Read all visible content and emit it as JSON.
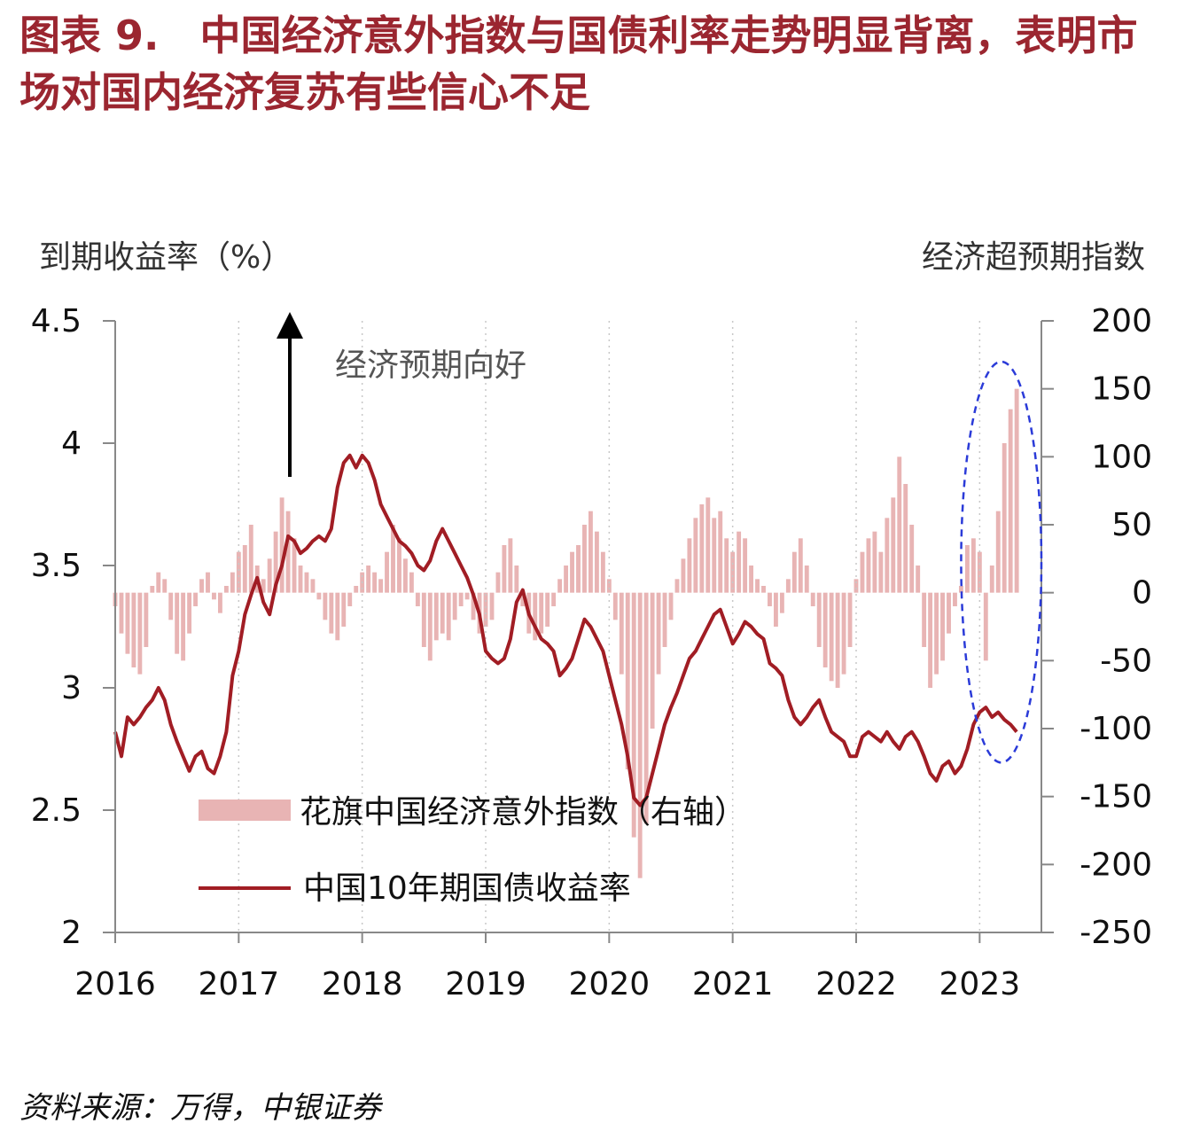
{
  "title": "图表 9.　中国经济意外指数与国债利率走势明显背离，表明市场对国内经济复苏有些信心不足",
  "source": "资料来源：万得，中银证券",
  "chart_data": {
    "type": "bar+line",
    "left_axis": {
      "title": "到期收益率（%）",
      "range": [
        2,
        4.5
      ],
      "ticks": [
        "2",
        "2.5",
        "3",
        "3.5",
        "4",
        "4.5"
      ]
    },
    "right_axis": {
      "title": "经济超预期指数",
      "range": [
        -250,
        200
      ],
      "ticks": [
        "-250",
        "-200",
        "-150",
        "-100",
        "-50",
        "0",
        "50",
        "100",
        "150",
        "200"
      ]
    },
    "x_axis": {
      "range": [
        2016,
        2023.5
      ],
      "ticks": [
        "2016",
        "2017",
        "2018",
        "2019",
        "2020",
        "2021",
        "2022",
        "2023"
      ]
    },
    "annotation": "经济预期向好",
    "series": [
      {
        "name": "花旗中国经济意外指数（右轴）",
        "type": "bar",
        "axis": "right",
        "color": "#e8b4b4",
        "points": [
          [
            2016.0,
            -10
          ],
          [
            2016.05,
            -30
          ],
          [
            2016.1,
            -45
          ],
          [
            2016.15,
            -55
          ],
          [
            2016.2,
            -60
          ],
          [
            2016.25,
            -40
          ],
          [
            2016.3,
            5
          ],
          [
            2016.35,
            15
          ],
          [
            2016.4,
            10
          ],
          [
            2016.45,
            -20
          ],
          [
            2016.5,
            -45
          ],
          [
            2016.55,
            -50
          ],
          [
            2016.6,
            -30
          ],
          [
            2016.65,
            -10
          ],
          [
            2016.7,
            10
          ],
          [
            2016.75,
            15
          ],
          [
            2016.8,
            -5
          ],
          [
            2016.85,
            -15
          ],
          [
            2016.9,
            5
          ],
          [
            2016.95,
            15
          ],
          [
            2017.0,
            30
          ],
          [
            2017.05,
            35
          ],
          [
            2017.1,
            50
          ],
          [
            2017.15,
            20
          ],
          [
            2017.2,
            10
          ],
          [
            2017.25,
            25
          ],
          [
            2017.3,
            45
          ],
          [
            2017.35,
            70
          ],
          [
            2017.4,
            60
          ],
          [
            2017.45,
            40
          ],
          [
            2017.5,
            20
          ],
          [
            2017.55,
            15
          ],
          [
            2017.6,
            10
          ],
          [
            2017.65,
            -5
          ],
          [
            2017.7,
            -20
          ],
          [
            2017.75,
            -30
          ],
          [
            2017.8,
            -35
          ],
          [
            2017.85,
            -25
          ],
          [
            2017.9,
            -10
          ],
          [
            2017.95,
            5
          ],
          [
            2018.0,
            15
          ],
          [
            2018.05,
            20
          ],
          [
            2018.1,
            15
          ],
          [
            2018.15,
            10
          ],
          [
            2018.2,
            30
          ],
          [
            2018.25,
            50
          ],
          [
            2018.3,
            40
          ],
          [
            2018.35,
            25
          ],
          [
            2018.4,
            15
          ],
          [
            2018.45,
            -10
          ],
          [
            2018.5,
            -40
          ],
          [
            2018.55,
            -50
          ],
          [
            2018.6,
            -35
          ],
          [
            2018.65,
            -30
          ],
          [
            2018.7,
            -35
          ],
          [
            2018.75,
            -20
          ],
          [
            2018.8,
            -10
          ],
          [
            2018.85,
            -5
          ],
          [
            2018.9,
            -20
          ],
          [
            2018.95,
            -30
          ],
          [
            2019.0,
            -25
          ],
          [
            2019.05,
            -20
          ],
          [
            2019.1,
            15
          ],
          [
            2019.15,
            35
          ],
          [
            2019.2,
            40
          ],
          [
            2019.25,
            20
          ],
          [
            2019.3,
            -10
          ],
          [
            2019.35,
            -30
          ],
          [
            2019.4,
            -35
          ],
          [
            2019.45,
            -30
          ],
          [
            2019.5,
            -25
          ],
          [
            2019.55,
            -10
          ],
          [
            2019.6,
            10
          ],
          [
            2019.65,
            20
          ],
          [
            2019.7,
            30
          ],
          [
            2019.75,
            35
          ],
          [
            2019.8,
            50
          ],
          [
            2019.85,
            60
          ],
          [
            2019.9,
            45
          ],
          [
            2019.95,
            30
          ],
          [
            2020.0,
            10
          ],
          [
            2020.05,
            -20
          ],
          [
            2020.1,
            -60
          ],
          [
            2020.15,
            -130
          ],
          [
            2020.2,
            -180
          ],
          [
            2020.25,
            -210
          ],
          [
            2020.3,
            -170
          ],
          [
            2020.35,
            -100
          ],
          [
            2020.4,
            -60
          ],
          [
            2020.45,
            -40
          ],
          [
            2020.5,
            -20
          ],
          [
            2020.55,
            10
          ],
          [
            2020.6,
            25
          ],
          [
            2020.65,
            40
          ],
          [
            2020.7,
            55
          ],
          [
            2020.75,
            65
          ],
          [
            2020.8,
            70
          ],
          [
            2020.85,
            55
          ],
          [
            2020.9,
            60
          ],
          [
            2020.95,
            40
          ],
          [
            2021.0,
            30
          ],
          [
            2021.05,
            45
          ],
          [
            2021.1,
            40
          ],
          [
            2021.15,
            20
          ],
          [
            2021.2,
            10
          ],
          [
            2021.25,
            5
          ],
          [
            2021.3,
            -10
          ],
          [
            2021.35,
            -25
          ],
          [
            2021.4,
            -15
          ],
          [
            2021.45,
            10
          ],
          [
            2021.5,
            30
          ],
          [
            2021.55,
            40
          ],
          [
            2021.6,
            20
          ],
          [
            2021.65,
            -10
          ],
          [
            2021.7,
            -40
          ],
          [
            2021.75,
            -55
          ],
          [
            2021.8,
            -65
          ],
          [
            2021.85,
            -70
          ],
          [
            2021.9,
            -60
          ],
          [
            2021.95,
            -40
          ],
          [
            2022.0,
            10
          ],
          [
            2022.05,
            30
          ],
          [
            2022.1,
            40
          ],
          [
            2022.15,
            45
          ],
          [
            2022.2,
            30
          ],
          [
            2022.25,
            55
          ],
          [
            2022.3,
            70
          ],
          [
            2022.35,
            100
          ],
          [
            2022.4,
            80
          ],
          [
            2022.45,
            50
          ],
          [
            2022.5,
            20
          ],
          [
            2022.55,
            -40
          ],
          [
            2022.6,
            -70
          ],
          [
            2022.65,
            -60
          ],
          [
            2022.7,
            -50
          ],
          [
            2022.75,
            -30
          ],
          [
            2022.8,
            -10
          ],
          [
            2022.85,
            5
          ],
          [
            2022.9,
            35
          ],
          [
            2022.95,
            40
          ],
          [
            2023.0,
            30
          ],
          [
            2023.05,
            -50
          ],
          [
            2023.1,
            20
          ],
          [
            2023.15,
            60
          ],
          [
            2023.2,
            110
          ],
          [
            2023.25,
            135
          ],
          [
            2023.3,
            150
          ]
        ]
      },
      {
        "name": "中国10年期国债收益率",
        "type": "line",
        "axis": "left",
        "color": "#a11d24",
        "points": [
          [
            2016.0,
            2.82
          ],
          [
            2016.05,
            2.72
          ],
          [
            2016.1,
            2.88
          ],
          [
            2016.15,
            2.85
          ],
          [
            2016.2,
            2.88
          ],
          [
            2016.25,
            2.92
          ],
          [
            2016.3,
            2.95
          ],
          [
            2016.35,
            3.0
          ],
          [
            2016.4,
            2.95
          ],
          [
            2016.45,
            2.85
          ],
          [
            2016.5,
            2.78
          ],
          [
            2016.55,
            2.72
          ],
          [
            2016.6,
            2.66
          ],
          [
            2016.65,
            2.72
          ],
          [
            2016.7,
            2.74
          ],
          [
            2016.75,
            2.67
          ],
          [
            2016.8,
            2.65
          ],
          [
            2016.85,
            2.72
          ],
          [
            2016.9,
            2.82
          ],
          [
            2016.95,
            3.05
          ],
          [
            2017.0,
            3.15
          ],
          [
            2017.05,
            3.3
          ],
          [
            2017.1,
            3.38
          ],
          [
            2017.15,
            3.45
          ],
          [
            2017.2,
            3.35
          ],
          [
            2017.25,
            3.3
          ],
          [
            2017.3,
            3.42
          ],
          [
            2017.35,
            3.5
          ],
          [
            2017.4,
            3.62
          ],
          [
            2017.45,
            3.6
          ],
          [
            2017.5,
            3.55
          ],
          [
            2017.55,
            3.57
          ],
          [
            2017.6,
            3.6
          ],
          [
            2017.65,
            3.62
          ],
          [
            2017.7,
            3.6
          ],
          [
            2017.75,
            3.65
          ],
          [
            2017.8,
            3.82
          ],
          [
            2017.85,
            3.92
          ],
          [
            2017.9,
            3.95
          ],
          [
            2017.95,
            3.9
          ],
          [
            2018.0,
            3.95
          ],
          [
            2018.05,
            3.92
          ],
          [
            2018.1,
            3.85
          ],
          [
            2018.15,
            3.75
          ],
          [
            2018.2,
            3.7
          ],
          [
            2018.25,
            3.65
          ],
          [
            2018.3,
            3.6
          ],
          [
            2018.35,
            3.58
          ],
          [
            2018.4,
            3.55
          ],
          [
            2018.45,
            3.5
          ],
          [
            2018.5,
            3.48
          ],
          [
            2018.55,
            3.52
          ],
          [
            2018.6,
            3.6
          ],
          [
            2018.65,
            3.65
          ],
          [
            2018.7,
            3.6
          ],
          [
            2018.75,
            3.55
          ],
          [
            2018.8,
            3.5
          ],
          [
            2018.85,
            3.45
          ],
          [
            2018.9,
            3.38
          ],
          [
            2018.95,
            3.3
          ],
          [
            2019.0,
            3.15
          ],
          [
            2019.05,
            3.12
          ],
          [
            2019.1,
            3.1
          ],
          [
            2019.15,
            3.12
          ],
          [
            2019.2,
            3.2
          ],
          [
            2019.25,
            3.35
          ],
          [
            2019.3,
            3.4
          ],
          [
            2019.35,
            3.3
          ],
          [
            2019.4,
            3.25
          ],
          [
            2019.45,
            3.2
          ],
          [
            2019.5,
            3.18
          ],
          [
            2019.55,
            3.15
          ],
          [
            2019.6,
            3.05
          ],
          [
            2019.65,
            3.08
          ],
          [
            2019.7,
            3.12
          ],
          [
            2019.75,
            3.2
          ],
          [
            2019.8,
            3.28
          ],
          [
            2019.85,
            3.25
          ],
          [
            2019.9,
            3.2
          ],
          [
            2019.95,
            3.15
          ],
          [
            2020.0,
            3.05
          ],
          [
            2020.05,
            2.95
          ],
          [
            2020.1,
            2.85
          ],
          [
            2020.15,
            2.72
          ],
          [
            2020.2,
            2.55
          ],
          [
            2020.25,
            2.52
          ],
          [
            2020.3,
            2.55
          ],
          [
            2020.35,
            2.65
          ],
          [
            2020.4,
            2.75
          ],
          [
            2020.45,
            2.85
          ],
          [
            2020.5,
            2.92
          ],
          [
            2020.55,
            2.98
          ],
          [
            2020.6,
            3.05
          ],
          [
            2020.65,
            3.12
          ],
          [
            2020.7,
            3.15
          ],
          [
            2020.75,
            3.2
          ],
          [
            2020.8,
            3.25
          ],
          [
            2020.85,
            3.3
          ],
          [
            2020.9,
            3.32
          ],
          [
            2020.95,
            3.25
          ],
          [
            2021.0,
            3.18
          ],
          [
            2021.05,
            3.22
          ],
          [
            2021.1,
            3.27
          ],
          [
            2021.15,
            3.25
          ],
          [
            2021.2,
            3.22
          ],
          [
            2021.25,
            3.2
          ],
          [
            2021.3,
            3.1
          ],
          [
            2021.35,
            3.08
          ],
          [
            2021.4,
            3.05
          ],
          [
            2021.45,
            2.95
          ],
          [
            2021.5,
            2.88
          ],
          [
            2021.55,
            2.85
          ],
          [
            2021.6,
            2.88
          ],
          [
            2021.65,
            2.92
          ],
          [
            2021.7,
            2.95
          ],
          [
            2021.75,
            2.88
          ],
          [
            2021.8,
            2.82
          ],
          [
            2021.85,
            2.8
          ],
          [
            2021.9,
            2.78
          ],
          [
            2021.95,
            2.72
          ],
          [
            2022.0,
            2.72
          ],
          [
            2022.05,
            2.8
          ],
          [
            2022.1,
            2.82
          ],
          [
            2022.15,
            2.8
          ],
          [
            2022.2,
            2.78
          ],
          [
            2022.25,
            2.82
          ],
          [
            2022.3,
            2.78
          ],
          [
            2022.35,
            2.75
          ],
          [
            2022.4,
            2.8
          ],
          [
            2022.45,
            2.82
          ],
          [
            2022.5,
            2.78
          ],
          [
            2022.55,
            2.72
          ],
          [
            2022.6,
            2.65
          ],
          [
            2022.65,
            2.62
          ],
          [
            2022.7,
            2.68
          ],
          [
            2022.75,
            2.7
          ],
          [
            2022.8,
            2.65
          ],
          [
            2022.85,
            2.68
          ],
          [
            2022.9,
            2.75
          ],
          [
            2022.95,
            2.85
          ],
          [
            2023.0,
            2.9
          ],
          [
            2023.05,
            2.92
          ],
          [
            2023.1,
            2.88
          ],
          [
            2023.15,
            2.9
          ],
          [
            2023.2,
            2.87
          ],
          [
            2023.25,
            2.85
          ],
          [
            2023.3,
            2.82
          ]
        ]
      }
    ],
    "highlight": {
      "shape": "ellipse",
      "style": "dashed",
      "color": "#2b3bd8",
      "x_range": [
        2022.85,
        2023.5
      ],
      "y_right_range": [
        -125,
        170
      ]
    },
    "grid": false,
    "legend": "bottom-left inside"
  }
}
